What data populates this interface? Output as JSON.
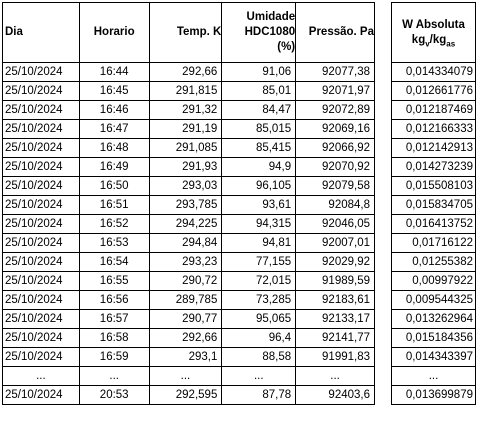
{
  "table": {
    "headers": {
      "date": "Dia",
      "time": "Horario",
      "temp": "Temp. K",
      "hum_line1": "Umidade",
      "hum_line2": "HDC1080",
      "hum_line3": "(%)",
      "pressure": "Pressão. Pa",
      "w_title": "W Absoluta",
      "w_unit_a": "kg",
      "w_unit_a_sub": "v",
      "w_unit_sep": "/kg",
      "w_unit_b_sub": "as"
    },
    "rows": [
      {
        "date": "25/10/2024",
        "time": "16:44",
        "temp": "292,66",
        "hum": "91,06",
        "pressure": "92077,38",
        "w": "0,014334079"
      },
      {
        "date": "25/10/2024",
        "time": "16:45",
        "temp": "291,815",
        "hum": "85,01",
        "pressure": "92071,97",
        "w": "0,012661776"
      },
      {
        "date": "25/10/2024",
        "time": "16:46",
        "temp": "291,32",
        "hum": "84,47",
        "pressure": "92072,89",
        "w": "0,012187469"
      },
      {
        "date": "25/10/2024",
        "time": "16:47",
        "temp": "291,19",
        "hum": "85,015",
        "pressure": "92069,16",
        "w": "0,012166333"
      },
      {
        "date": "25/10/2024",
        "time": "16:48",
        "temp": "291,085",
        "hum": "85,415",
        "pressure": "92066,92",
        "w": "0,012142913"
      },
      {
        "date": "25/10/2024",
        "time": "16:49",
        "temp": "291,93",
        "hum": "94,9",
        "pressure": "92070,92",
        "w": "0,014273239"
      },
      {
        "date": "25/10/2024",
        "time": "16:50",
        "temp": "293,03",
        "hum": "96,105",
        "pressure": "92079,58",
        "w": "0,015508103"
      },
      {
        "date": "25/10/2024",
        "time": "16:51",
        "temp": "293,785",
        "hum": "93,61",
        "pressure": "92084,8",
        "w": "0,015834705"
      },
      {
        "date": "25/10/2024",
        "time": "16:52",
        "temp": "294,225",
        "hum": "94,315",
        "pressure": "92046,05",
        "w": "0,016413752"
      },
      {
        "date": "25/10/2024",
        "time": "16:53",
        "temp": "294,84",
        "hum": "94,81",
        "pressure": "92007,01",
        "w": "0,01716122"
      },
      {
        "date": "25/10/2024",
        "time": "16:54",
        "temp": "293,23",
        "hum": "77,155",
        "pressure": "92029,92",
        "w": "0,01255382"
      },
      {
        "date": "25/10/2024",
        "time": "16:55",
        "temp": "290,72",
        "hum": "72,015",
        "pressure": "91989,59",
        "w": "0,00997922"
      },
      {
        "date": "25/10/2024",
        "time": "16:56",
        "temp": "289,785",
        "hum": "73,285",
        "pressure": "92183,61",
        "w": "0,009544325"
      },
      {
        "date": "25/10/2024",
        "time": "16:57",
        "temp": "290,77",
        "hum": "95,065",
        "pressure": "92133,17",
        "w": "0,013262964"
      },
      {
        "date": "25/10/2024",
        "time": "16:58",
        "temp": "292,66",
        "hum": "96,4",
        "pressure": "92141,77",
        "w": "0,015184356"
      },
      {
        "date": "25/10/2024",
        "time": "16:59",
        "temp": "293,1",
        "hum": "88,58",
        "pressure": "91991,83",
        "w": "0,014343397"
      },
      {
        "date": "...",
        "time": "...",
        "temp": "...",
        "hum": "...",
        "pressure": "...",
        "w": "..."
      },
      {
        "date": "25/10/2024",
        "time": "20:53",
        "temp": "292,595",
        "hum": "87,78",
        "pressure": "92403,6",
        "w": "0,013699879"
      }
    ]
  }
}
